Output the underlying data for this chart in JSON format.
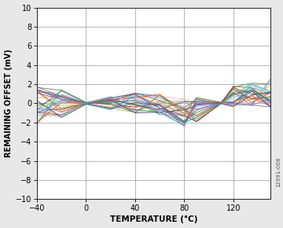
{
  "xlim": [
    -40,
    150
  ],
  "ylim": [
    -10,
    10
  ],
  "xticks": [
    -40,
    0,
    40,
    80,
    120
  ],
  "yticks": [
    -10,
    -8,
    -6,
    -4,
    -2,
    0,
    2,
    4,
    6,
    8,
    10
  ],
  "xlabel": "TEMPERATURE (°C)",
  "ylabel": "REMAINING OFFSET (mV)",
  "grid_color": "#999999",
  "background_color": "#ffffff",
  "fig_bg": "#e8e8e8",
  "watermark": "12991-008",
  "colors": [
    "#1f77b4",
    "#ff7f0e",
    "#2ca02c",
    "#d62728",
    "#9467bd",
    "#8c564b",
    "#e377c2",
    "#7f7f7f",
    "#bcbd22",
    "#17becf",
    "#aec7e8",
    "#ffbb78",
    "#98df8a",
    "#ff9896",
    "#c5b0d5",
    "#c49c94",
    "#f7b6d2",
    "#393b79",
    "#9edae5",
    "#6b6ecf",
    "#637939",
    "#8c6d31",
    "#843c39",
    "#7b4173",
    "#3182bd",
    "#e6550d",
    "#31a354",
    "#756bb1",
    "#636363",
    "#6baed6"
  ],
  "n_traces": 30,
  "temp_nodes": [
    -40,
    -20,
    0,
    20,
    40,
    60,
    80,
    90,
    110,
    120,
    135,
    150
  ]
}
